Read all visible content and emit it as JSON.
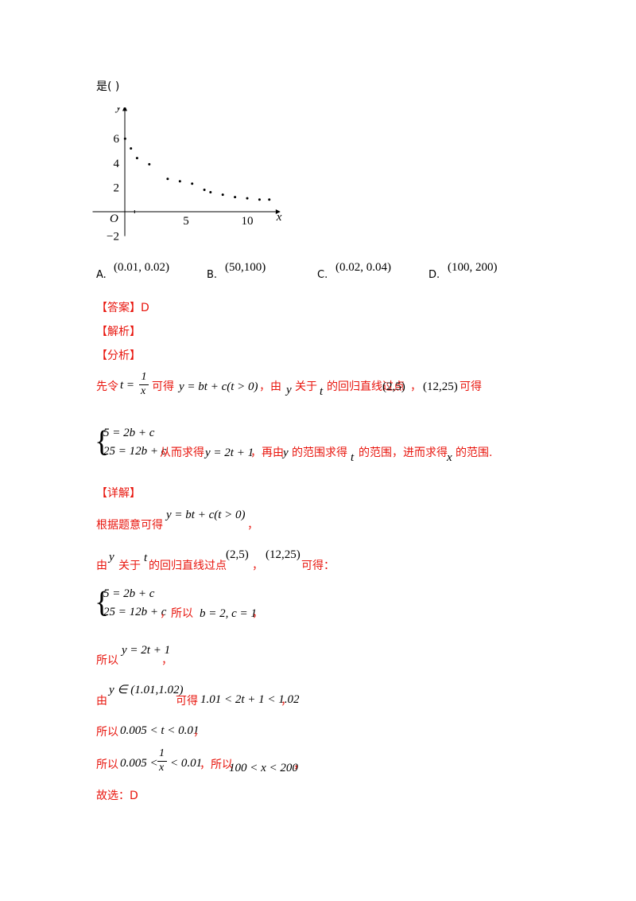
{
  "question": {
    "stem_tail": "是(      )",
    "chart_data": {
      "type": "scatter",
      "title": "",
      "xlabel": "x",
      "ylabel": "y",
      "origin_label": "O",
      "x_ticks": [
        "5",
        "10"
      ],
      "y_ticks": [
        "6",
        "4",
        "2",
        "−2"
      ],
      "xlim": [
        -2.5,
        12
      ],
      "ylim": [
        -2,
        8.6
      ],
      "grid": false,
      "points": [
        {
          "x": 0.02,
          "y": 6.0
        },
        {
          "x": 0.5,
          "y": 5.2
        },
        {
          "x": 1.0,
          "y": 4.4
        },
        {
          "x": 2.0,
          "y": 3.9
        },
        {
          "x": 3.5,
          "y": 2.7
        },
        {
          "x": 4.5,
          "y": 2.5
        },
        {
          "x": 5.5,
          "y": 2.3
        },
        {
          "x": 6.5,
          "y": 1.8
        },
        {
          "x": 7.0,
          "y": 1.6
        },
        {
          "x": 8.0,
          "y": 1.4
        },
        {
          "x": 9.0,
          "y": 1.2
        },
        {
          "x": 10.0,
          "y": 1.1
        },
        {
          "x": 11.0,
          "y": 1.0
        },
        {
          "x": 11.8,
          "y": 1.0
        }
      ]
    },
    "options": [
      {
        "letter": "A.",
        "value": "(0.01, 0.02)"
      },
      {
        "letter": "B.",
        "value": "(50,100)"
      },
      {
        "letter": "C.",
        "value": "(0.02, 0.04)"
      },
      {
        "letter": "D.",
        "value": "(100, 200)"
      }
    ]
  },
  "answer": {
    "answer_label": "【答案】D",
    "jiexi_label": "【解析】",
    "fenxi_label": "【分析】",
    "fenxi_line1": {
      "t1": "先令",
      "m1": "t =",
      "m1_num": "1",
      "m1_den": "x",
      "t2": "可得",
      "m2": "y = bt + c(t > 0)",
      "t3": "，由",
      "m3": "y",
      "t4": "关于",
      "m4": "t",
      "t5": "的回归直线过点",
      "m5": "(2,5)",
      "t6": "，",
      "m6": "(12,25)",
      "t7": "可得"
    },
    "fenxi_line2": {
      "sys1": "5 = 2b + c",
      "sys2": "25 = 12b + c",
      "t1": "从而求得",
      "m1": "y = 2t + 1",
      "t2": "，再由",
      "m2": "y",
      "t3": "的范围求得",
      "m3": "t",
      "t4": "的范围，进而求得",
      "m4": "x",
      "t5": "的范围."
    },
    "xiangjie_label": "【详解】",
    "step1": {
      "t1": "根据题意可得",
      "m1": "y = bt + c(t > 0)",
      "t2": "，"
    },
    "step2": {
      "t1": "由",
      "m1": "y",
      "t2": "关于",
      "m2": "t",
      "t3": "的回归直线过点",
      "m3": "(2,5)",
      "t4": "，",
      "m4": "(12,25)",
      "t5": "可得："
    },
    "step3": {
      "sys1": "5 = 2b + c",
      "sys2": "25 = 12b + c",
      "t1": "，所以",
      "m1": "b = 2, c = 1",
      "t2": "，"
    },
    "step4": {
      "t1": "所以",
      "m1": "y = 2t + 1",
      "t2": "，"
    },
    "step5": {
      "t1": "由",
      "m1": "y ∈ (1.01,1.02)",
      "t2": "可得",
      "m2": "1.01 < 2t + 1 < 1.02",
      "t3": "，"
    },
    "step6": {
      "t1": "所以",
      "m1": "0.005 < t < 0.01",
      "t2": "，"
    },
    "step7": {
      "t1": "所以",
      "m1a": "0.005 <",
      "m1_num": "1",
      "m1_den": "x",
      "m1b": "< 0.01",
      "t2": "，所以",
      "m2": "100 < x < 200",
      "t3": "，"
    },
    "final": "故选：D"
  }
}
